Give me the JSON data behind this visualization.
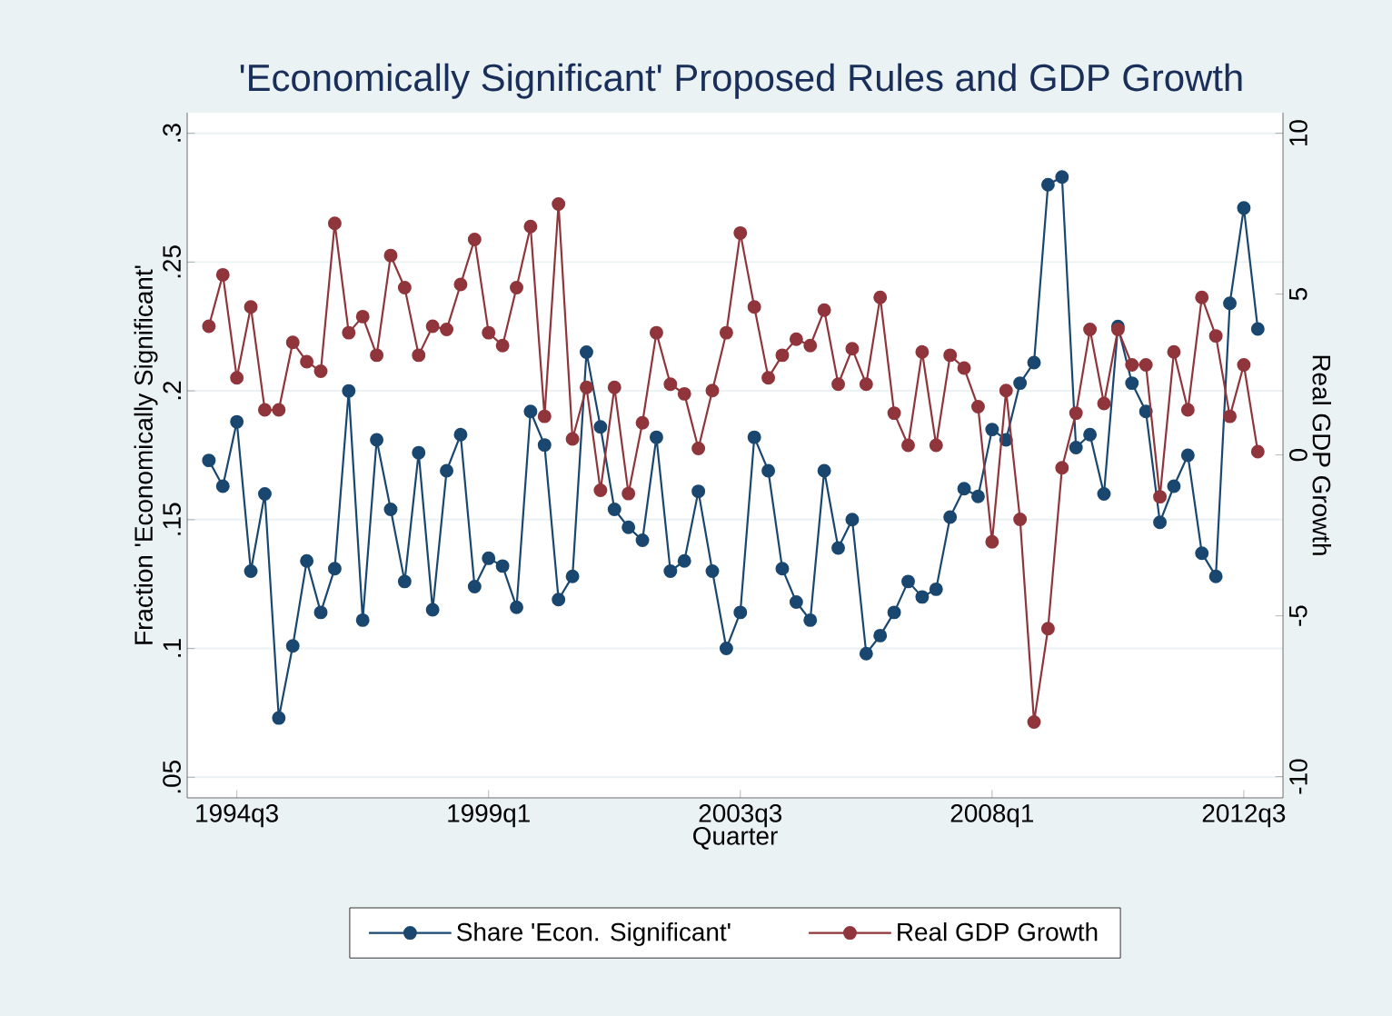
{
  "chart_data": {
    "type": "line",
    "title": "'Economically Significant' Proposed Rules and GDP Growth",
    "xlabel": "Quarter",
    "ylabel": "Fraction 'Economically Significant'",
    "y2label": "Real GDP Growth",
    "categories": [
      null,
      null,
      "1994q3",
      null,
      null,
      null,
      null,
      null,
      null,
      null,
      null,
      null,
      null,
      null,
      null,
      null,
      null,
      null,
      null,
      null,
      "1999q1",
      null,
      null,
      null,
      null,
      null,
      null,
      null,
      null,
      null,
      null,
      null,
      null,
      null,
      null,
      null,
      null,
      null,
      "2003q3",
      null,
      null,
      null,
      null,
      null,
      null,
      null,
      null,
      null,
      null,
      null,
      null,
      null,
      null,
      null,
      null,
      null,
      "2008q1",
      null,
      null,
      null,
      null,
      null,
      null,
      null,
      null,
      null,
      null,
      null,
      null,
      null,
      null,
      null,
      null,
      null,
      "2012q3",
      null
    ],
    "series": [
      {
        "name": "Share 'Econ. Significant'",
        "color": "#1a476f",
        "values": [
          0.173,
          0.163,
          0.188,
          0.13,
          0.16,
          0.073,
          0.101,
          0.134,
          0.114,
          0.131,
          0.2,
          0.111,
          0.181,
          0.154,
          0.126,
          0.176,
          0.115,
          0.169,
          0.183,
          0.124,
          0.135,
          0.132,
          0.116,
          0.192,
          0.179,
          0.119,
          0.128,
          0.215,
          0.186,
          0.154,
          0.147,
          0.142,
          0.182,
          0.13,
          0.134,
          0.161,
          0.13,
          0.1,
          0.114,
          0.182,
          0.169,
          0.131,
          0.118,
          0.111,
          0.169,
          0.139,
          0.15,
          0.098,
          0.105,
          0.114,
          0.126,
          0.12,
          0.123,
          0.151,
          0.162,
          0.159,
          0.185,
          0.181,
          0.203,
          0.211,
          0.28,
          0.283,
          0.178,
          0.183,
          0.16,
          0.225,
          0.203,
          0.192,
          0.149,
          0.163,
          0.175,
          0.137,
          0.128,
          0.234,
          0.271,
          0.224
        ]
      },
      {
        "name": "Real GDP Growth",
        "color": "#90353b",
        "axis": "y2",
        "values": [
          4.0,
          5.6,
          2.4,
          4.6,
          1.4,
          1.4,
          3.5,
          2.9,
          2.6,
          7.2,
          3.8,
          4.3,
          3.1,
          6.2,
          5.2,
          3.1,
          4.0,
          3.9,
          5.3,
          6.7,
          3.8,
          3.4,
          5.2,
          7.1,
          1.2,
          7.8,
          0.5,
          2.1,
          -1.1,
          2.1,
          -1.2,
          1.0,
          3.8,
          2.2,
          1.9,
          0.2,
          2.0,
          3.8,
          6.9,
          4.6,
          2.4,
          3.1,
          3.6,
          3.4,
          4.5,
          2.2,
          3.3,
          2.2,
          4.9,
          1.3,
          0.3,
          3.2,
          0.3,
          3.1,
          2.7,
          1.5,
          -2.7,
          2.0,
          -2.0,
          -8.3,
          -5.4,
          -0.4,
          1.3,
          3.9,
          1.6,
          3.9,
          2.8,
          2.8,
          -1.3,
          3.2,
          1.4,
          4.9,
          3.7,
          1.2,
          2.8,
          0.1
        ]
      }
    ],
    "ylim": [
      0.042,
      0.308
    ],
    "y2lim": [
      -10.66,
      10.64
    ],
    "yticks": [
      {
        "value": 0.05,
        "label": ".05"
      },
      {
        "value": 0.1,
        "label": ".1"
      },
      {
        "value": 0.15,
        "label": ".15"
      },
      {
        "value": 0.2,
        "label": ".2"
      },
      {
        "value": 0.25,
        "label": ".25"
      },
      {
        "value": 0.3,
        "label": ".3"
      }
    ],
    "y2ticks": [
      -10,
      -5,
      0,
      5,
      10
    ],
    "grid": "y",
    "legend": "bottom",
    "marker": "circle",
    "line_style": "solid"
  }
}
